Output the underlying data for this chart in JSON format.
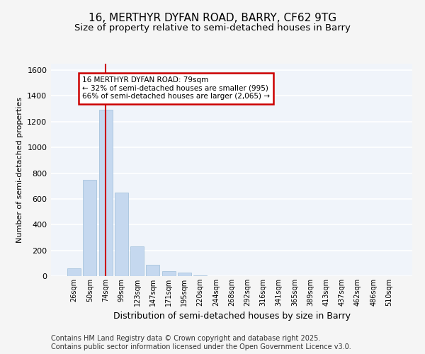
{
  "title1": "16, MERTHYR DYFAN ROAD, BARRY, CF62 9TG",
  "title2": "Size of property relative to semi-detached houses in Barry",
  "xlabel": "Distribution of semi-detached houses by size in Barry",
  "ylabel": "Number of semi-detached properties",
  "categories": [
    "26sqm",
    "50sqm",
    "74sqm",
    "99sqm",
    "123sqm",
    "147sqm",
    "171sqm",
    "195sqm",
    "220sqm",
    "244sqm",
    "268sqm",
    "292sqm",
    "316sqm",
    "341sqm",
    "365sqm",
    "389sqm",
    "413sqm",
    "437sqm",
    "462sqm",
    "486sqm",
    "510sqm"
  ],
  "values": [
    60,
    750,
    1290,
    650,
    230,
    90,
    40,
    25,
    8,
    0,
    0,
    0,
    0,
    0,
    0,
    0,
    0,
    0,
    0,
    0,
    0
  ],
  "bar_color": "#c5d8ef",
  "bar_edge_color": "#9dbdd8",
  "vline_x": 2,
  "vline_color": "#cc0000",
  "annotation_text": "16 MERTHYR DYFAN ROAD: 79sqm\n← 32% of semi-detached houses are smaller (995)\n66% of semi-detached houses are larger (2,065) →",
  "annotation_box_color": "#ffffff",
  "annotation_box_edge_color": "#cc0000",
  "footer_text": "Contains HM Land Registry data © Crown copyright and database right 2025.\nContains public sector information licensed under the Open Government Licence v3.0.",
  "bg_color": "#f5f5f5",
  "plot_bg_color": "#f0f4fa",
  "ylim": [
    0,
    1650
  ],
  "grid_color": "#ffffff",
  "title_fontsize": 11,
  "subtitle_fontsize": 9.5,
  "footer_fontsize": 7,
  "yticks": [
    0,
    200,
    400,
    600,
    800,
    1000,
    1200,
    1400,
    1600
  ]
}
